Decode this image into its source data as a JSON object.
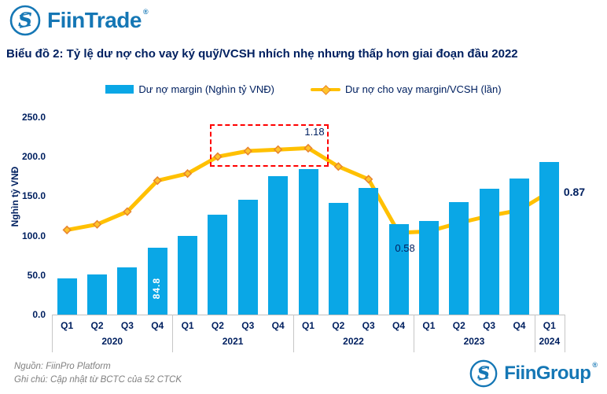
{
  "header": {
    "brand": "FiinTrade",
    "reg": "®"
  },
  "title": "Biểu đồ 2: Tỷ lệ dư nợ cho vay ký quỹ/VCSH nhích nhẹ nhưng thấp hơn giai đoạn đầu 2022",
  "legend": [
    {
      "label": "Dư nợ margin (Nghìn tỷ VNĐ)",
      "type": "bar"
    },
    {
      "label": "Dư nợ cho vay margin/VCSH (lần)",
      "type": "line"
    }
  ],
  "chart_data": {
    "type": "bar+line",
    "categories": [
      "Q1",
      "Q2",
      "Q3",
      "Q4",
      "Q1",
      "Q2",
      "Q3",
      "Q4",
      "Q1",
      "Q2",
      "Q3",
      "Q4",
      "Q1",
      "Q2",
      "Q3",
      "Q4",
      "Q1"
    ],
    "year_groups": [
      {
        "year": "2020",
        "count": 4
      },
      {
        "year": "2021",
        "count": 4
      },
      {
        "year": "2022",
        "count": 4
      },
      {
        "year": "2023",
        "count": 4
      },
      {
        "year": "2024",
        "count": 1
      }
    ],
    "series": [
      {
        "name": "Dư nợ margin (Nghìn tỷ VNĐ)",
        "type": "bar",
        "axis": "primary",
        "values": [
          46,
          51,
          60,
          84.8,
          100,
          126,
          145,
          175,
          184,
          141,
          160,
          115,
          119,
          142,
          159,
          172,
          193
        ]
      },
      {
        "name": "Dư nợ cho vay margin/VCSH (lần)",
        "type": "line",
        "axis": "secondary",
        "values": [
          0.6,
          0.64,
          0.73,
          0.95,
          1.0,
          1.12,
          1.16,
          1.17,
          1.18,
          1.05,
          0.96,
          0.58,
          0.59,
          0.65,
          0.7,
          0.74,
          0.87
        ]
      }
    ],
    "ylabel": "Nghìn tỷ VNĐ",
    "yticks": [
      {
        "label": "250.0",
        "value": 250
      },
      {
        "label": "200.0",
        "value": 200
      },
      {
        "label": "150.0",
        "value": 150
      },
      {
        "label": "100.0",
        "value": 100
      },
      {
        "label": "50.0",
        "value": 50
      },
      {
        "label": "0.0",
        "value": 0
      }
    ],
    "ylim": [
      0,
      250
    ],
    "secondary_ylim": [
      0,
      1.4
    ],
    "grid": false,
    "legend_position": "top",
    "annotations": {
      "bar_label": {
        "index": 3,
        "text": "84.8"
      },
      "line_labels": [
        {
          "index": 8,
          "text": "1.18",
          "placement": "above",
          "bold": false
        },
        {
          "index": 11,
          "text": "0.58",
          "placement": "below",
          "bold": false
        },
        {
          "index": 16,
          "text": "0.87",
          "placement": "right",
          "bold": true
        }
      ],
      "highlight_box": {
        "from_index": 5,
        "to_index": 8
      }
    }
  },
  "colors": {
    "bar": "#0AA7E6",
    "line": "#FFC000",
    "marker_fill": "#FFC42A",
    "marker_border": "#E8832C",
    "navy": "#002060",
    "highlight": "#FF0000",
    "gray_text": "#808080",
    "brand_blue": "#1577B5"
  },
  "footer": {
    "source": "Nguồn: FiinPro Platform",
    "note": "Ghi chú: Cập nhật từ BCTC của 52 CTCK",
    "brand": "FiinGroup",
    "reg": "®"
  }
}
